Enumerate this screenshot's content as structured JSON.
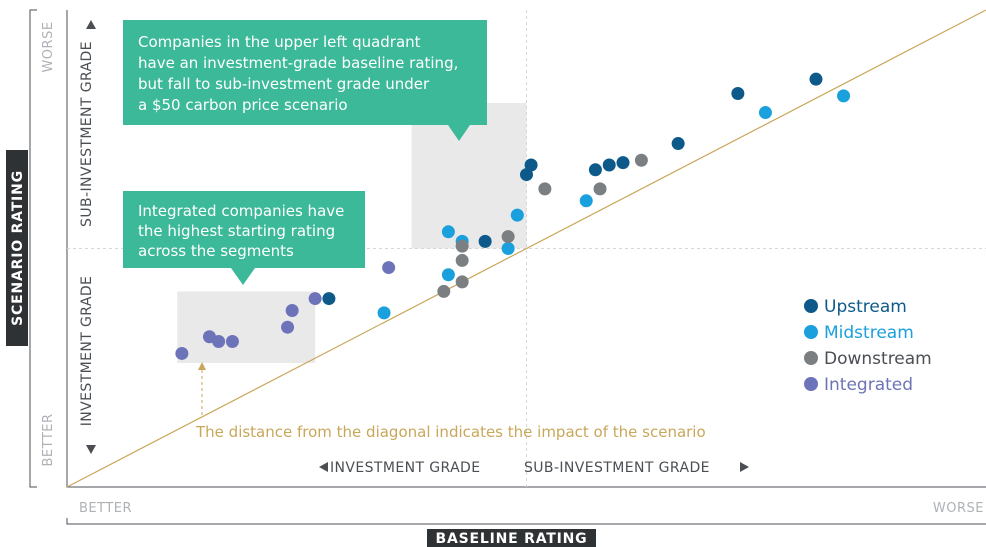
{
  "chart_data": {
    "type": "scatter",
    "x_axis": {
      "title": "BASELINE RATING",
      "low_label": "BETTER",
      "high_label": "WORSE",
      "grade_left": "INVESTMENT GRADE",
      "grade_right": "SUB-INVESTMENT GRADE"
    },
    "y_axis": {
      "title": "SCENARIO RATING",
      "low_label": "BETTER",
      "high_label": "WORSE",
      "grade_bottom": "INVESTMENT GRADE",
      "grade_top": "SUB-INVESTMENT GRADE"
    },
    "axis_range": {
      "x": [
        0,
        100
      ],
      "y": [
        0,
        100
      ]
    },
    "threshold": {
      "x": 50,
      "y": 50
    },
    "diagonal": true,
    "grid": false,
    "legend_position": "right",
    "highlight_boxes": [
      {
        "x": [
          12,
          27
        ],
        "y": [
          26,
          41
        ]
      },
      {
        "x": [
          37.5,
          50
        ],
        "y": [
          50,
          80.5
        ]
      }
    ],
    "callouts": [
      {
        "lines": [
          "Companies in the upper left quadrant",
          "have an investment-grade baseline rating,",
          "but fall to sub-investment grade under",
          "a $50 carbon price scenario"
        ]
      },
      {
        "lines": [
          "Integrated companies have",
          "the highest starting rating",
          "across the segments"
        ]
      }
    ],
    "annotation": "The distance from the diagonal indicates the impact of the scenario",
    "series": [
      {
        "name": "Upstream",
        "color": "#0d5a8a",
        "points": [
          [
            28.5,
            39.5
          ],
          [
            45.5,
            51.5
          ],
          [
            50,
            65.5
          ],
          [
            50.5,
            67.5
          ],
          [
            57.5,
            66.5
          ],
          [
            59,
            67.5
          ],
          [
            60.5,
            68
          ],
          [
            66.5,
            72
          ],
          [
            73,
            82.5
          ],
          [
            81.5,
            85.5
          ]
        ]
      },
      {
        "name": "Midstream",
        "color": "#1aa0dc",
        "points": [
          [
            34.5,
            36.5
          ],
          [
            41.5,
            44.5
          ],
          [
            41.5,
            53.5
          ],
          [
            43,
            51.5
          ],
          [
            48,
            50
          ],
          [
            49,
            57
          ],
          [
            56.5,
            60
          ],
          [
            76,
            78.5
          ],
          [
            84.5,
            82
          ]
        ]
      },
      {
        "name": "Downstream",
        "color": "#7c7f82",
        "points": [
          [
            41,
            41
          ],
          [
            43,
            43
          ],
          [
            43,
            47.5
          ],
          [
            43,
            50.5
          ],
          [
            48,
            52.5
          ],
          [
            52,
            62.5
          ],
          [
            58,
            62.5
          ],
          [
            62.5,
            68.5
          ]
        ]
      },
      {
        "name": "Integrated",
        "color": "#6d73b8",
        "points": [
          [
            12.5,
            28
          ],
          [
            15.5,
            31.5
          ],
          [
            16.5,
            30.5
          ],
          [
            18,
            30.5
          ],
          [
            24,
            33.5
          ],
          [
            24.5,
            37
          ],
          [
            27,
            39.5
          ],
          [
            35,
            46
          ]
        ]
      }
    ]
  },
  "colors": {
    "callout_bg": "#3cb999",
    "highlight_box": "#e9e9ea",
    "diagonal": "#c9a75a",
    "annotation": "#c9a75a",
    "axis_title_bg": "#2f3235"
  }
}
